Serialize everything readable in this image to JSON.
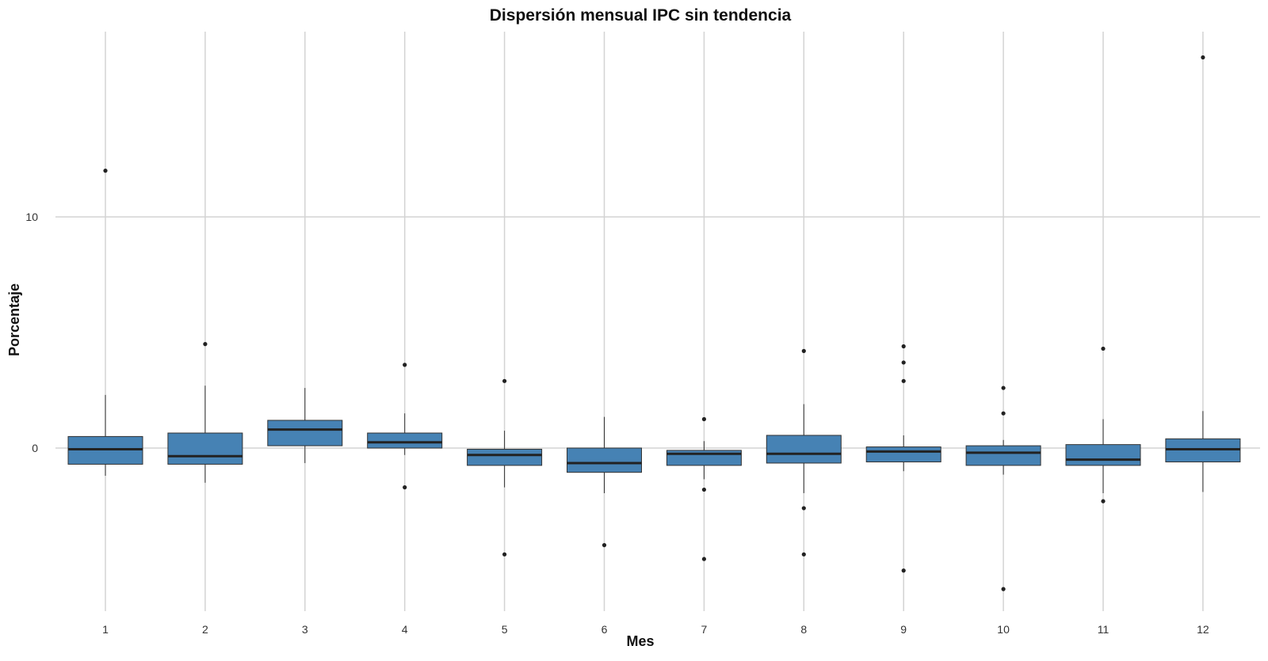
{
  "chart_data": {
    "type": "boxplot",
    "title": "Dispersión mensual IPC sin tendencia",
    "xlabel": "Mes",
    "ylabel": "Porcentaje",
    "categories": [
      "1",
      "2",
      "3",
      "4",
      "5",
      "6",
      "7",
      "8",
      "9",
      "10",
      "11",
      "12"
    ],
    "ylim": [
      -7.2,
      18.1
    ],
    "yticks": [
      0,
      10
    ],
    "grid": true,
    "colors": {
      "box_fill": "#4682b4",
      "box_stroke": "#333333",
      "median": "#222222",
      "grid": "#d3d3d3",
      "whisker": "#333333",
      "outlier": "#222222"
    },
    "boxes": [
      {
        "month": "1",
        "whisker_low": -1.2,
        "q1": -0.7,
        "median": -0.05,
        "q3": 0.5,
        "whisker_high": 2.3,
        "outliers": [
          12.0
        ]
      },
      {
        "month": "2",
        "whisker_low": -1.5,
        "q1": -0.7,
        "median": -0.35,
        "q3": 0.65,
        "whisker_high": 2.7,
        "outliers": [
          4.5
        ]
      },
      {
        "month": "3",
        "whisker_low": -0.65,
        "q1": 0.1,
        "median": 0.8,
        "q3": 1.2,
        "whisker_high": 2.6,
        "outliers": []
      },
      {
        "month": "4",
        "whisker_low": -0.3,
        "q1": 0.0,
        "median": 0.25,
        "q3": 0.65,
        "whisker_high": 1.5,
        "outliers": [
          3.6,
          -1.7
        ]
      },
      {
        "month": "5",
        "whisker_low": -1.7,
        "q1": -0.75,
        "median": -0.3,
        "q3": -0.05,
        "whisker_high": 0.75,
        "outliers": [
          2.9,
          -4.6
        ]
      },
      {
        "month": "6",
        "whisker_low": -1.95,
        "q1": -1.05,
        "median": -0.65,
        "q3": 0.0,
        "whisker_high": 1.35,
        "outliers": [
          -4.2
        ]
      },
      {
        "month": "7",
        "whisker_low": -1.35,
        "q1": -0.75,
        "median": -0.25,
        "q3": -0.1,
        "whisker_high": 0.3,
        "outliers": [
          1.25,
          -1.8,
          -4.8
        ]
      },
      {
        "month": "8",
        "whisker_low": -1.95,
        "q1": -0.65,
        "median": -0.25,
        "q3": 0.55,
        "whisker_high": 1.9,
        "outliers": [
          4.2,
          -2.6,
          -4.6
        ]
      },
      {
        "month": "9",
        "whisker_low": -1.0,
        "q1": -0.6,
        "median": -0.15,
        "q3": 0.05,
        "whisker_high": 0.55,
        "outliers": [
          4.4,
          3.7,
          2.9,
          -5.3
        ]
      },
      {
        "month": "10",
        "whisker_low": -1.15,
        "q1": -0.75,
        "median": -0.2,
        "q3": 0.1,
        "whisker_high": 0.35,
        "outliers": [
          2.6,
          1.5,
          -6.1
        ]
      },
      {
        "month": "11",
        "whisker_low": -1.95,
        "q1": -0.75,
        "median": -0.5,
        "q3": 0.15,
        "whisker_high": 1.25,
        "outliers": [
          4.3,
          -2.3
        ]
      },
      {
        "month": "12",
        "whisker_low": -1.9,
        "q1": -0.6,
        "median": -0.05,
        "q3": 0.4,
        "whisker_high": 1.6,
        "outliers": [
          16.9
        ]
      }
    ]
  }
}
